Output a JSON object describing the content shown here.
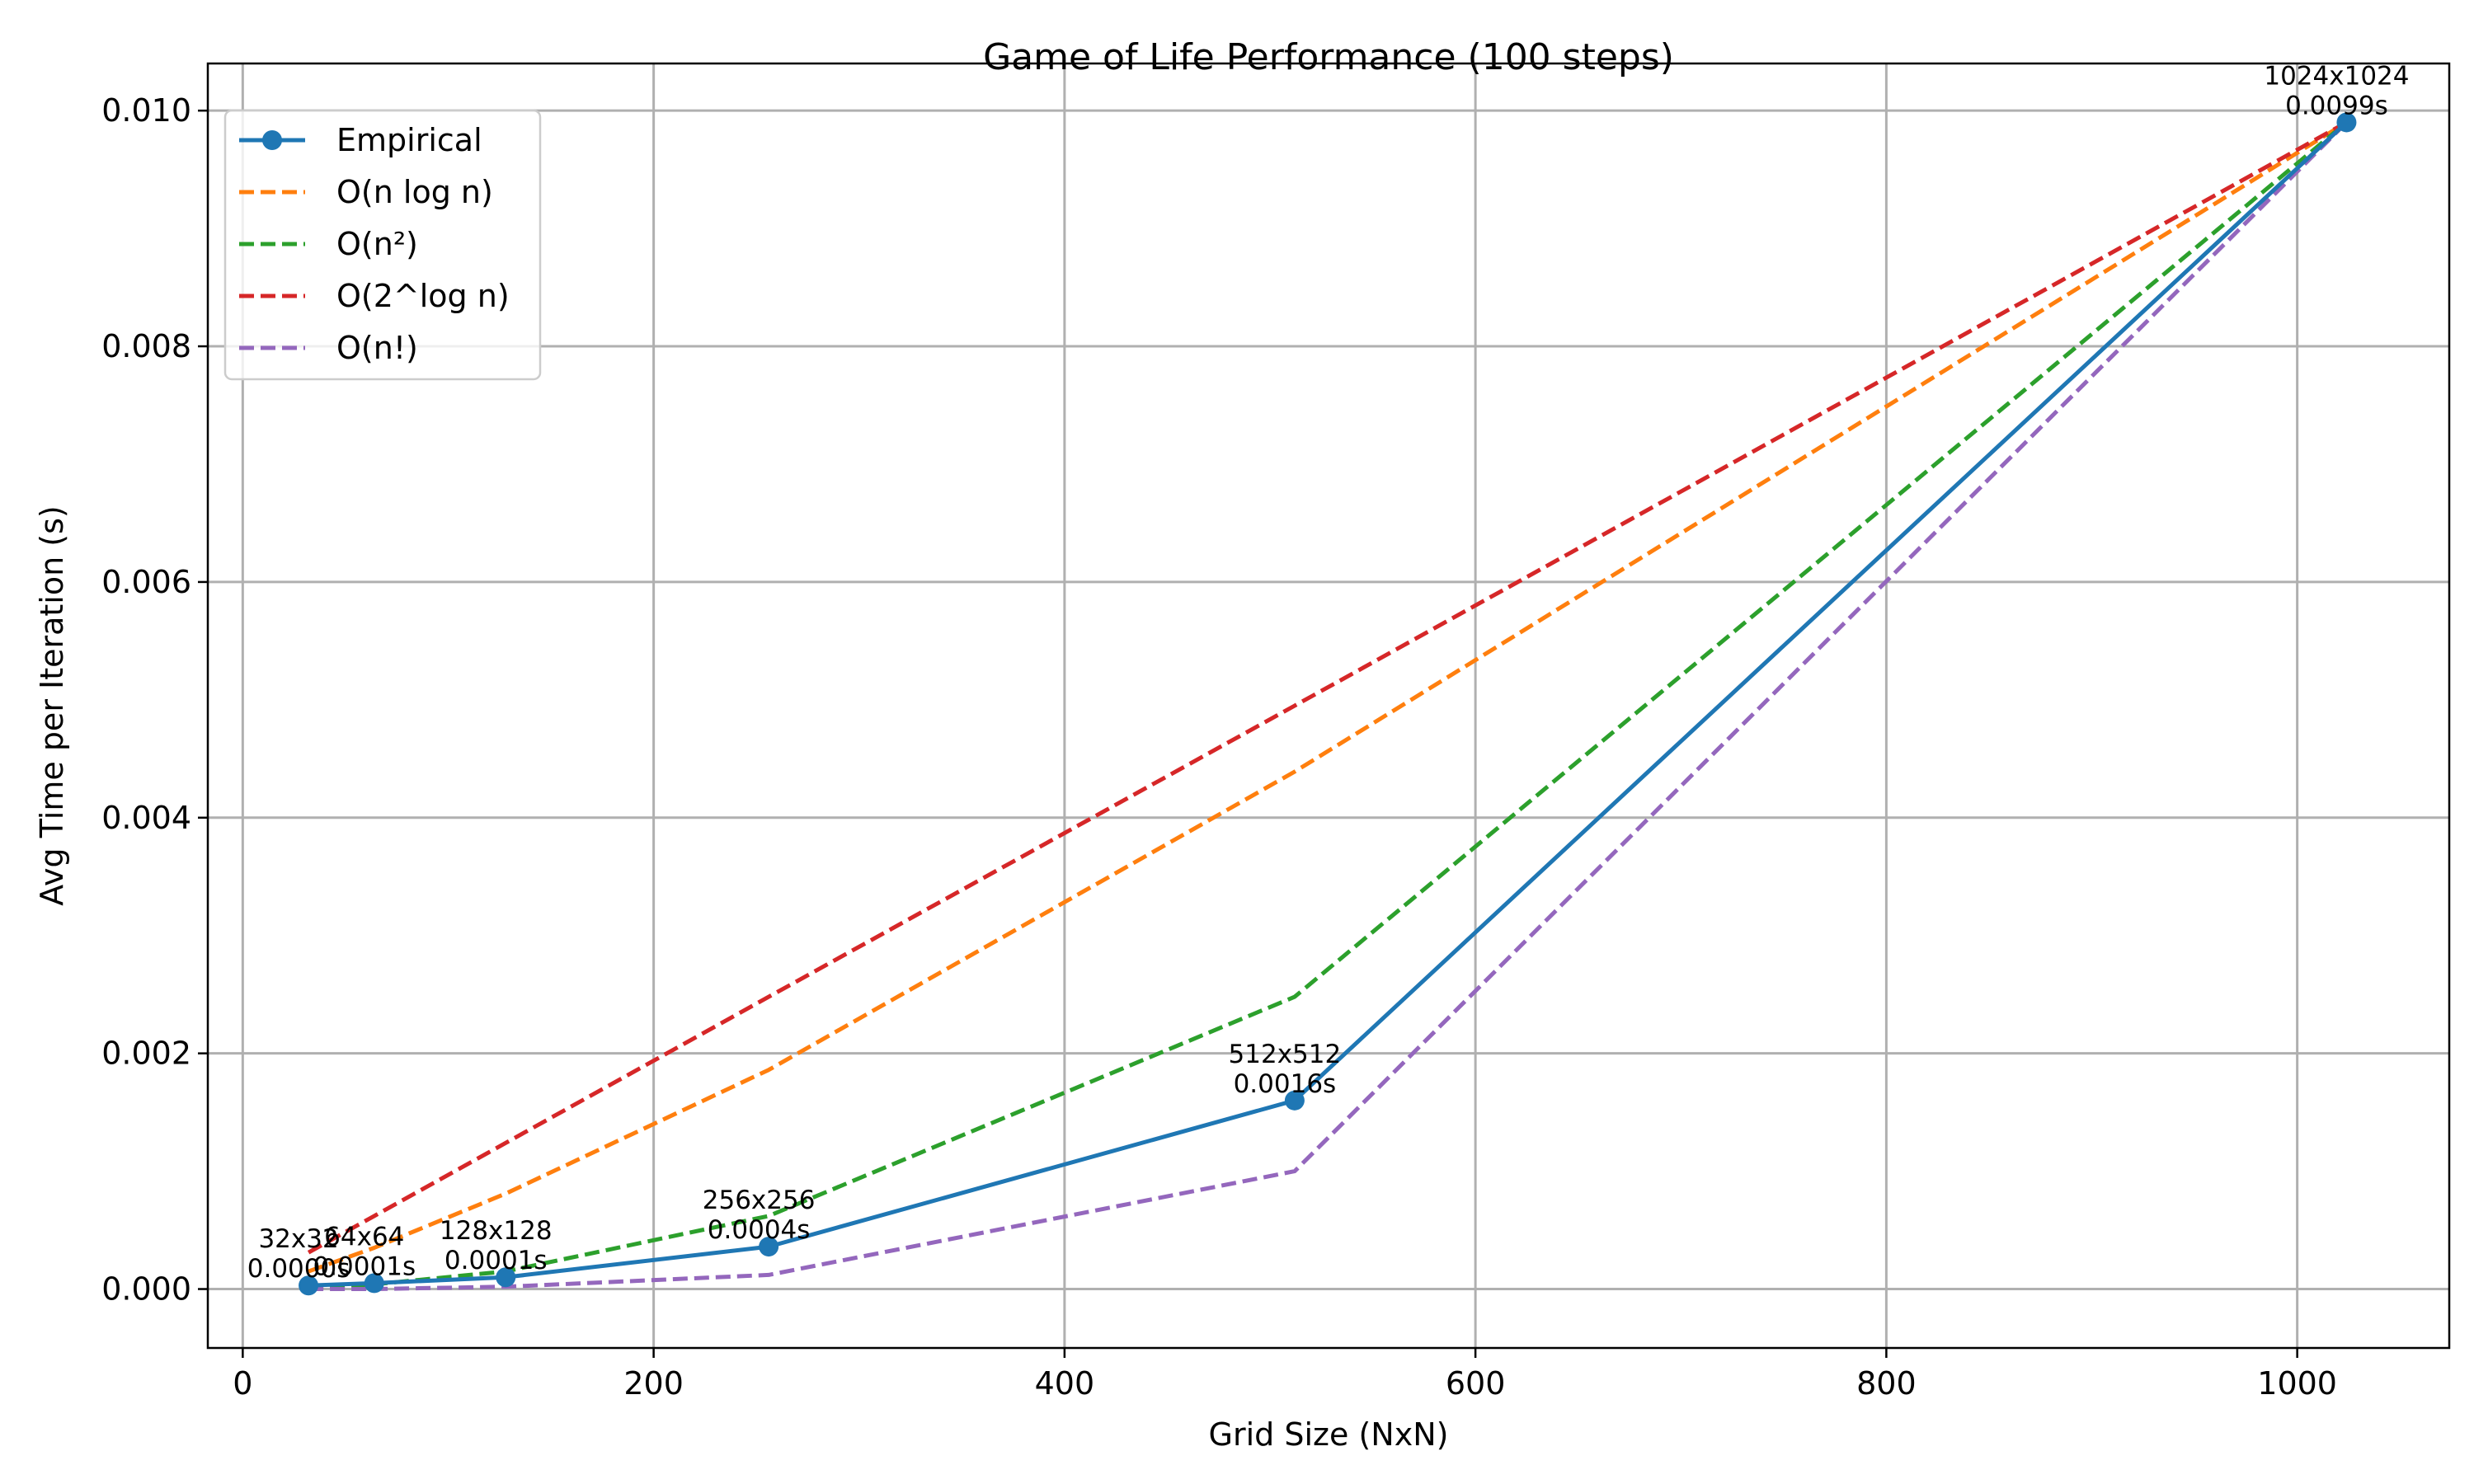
{
  "chart_data": {
    "type": "line",
    "title": "Game of Life Performance (100 steps)",
    "xlabel": "Grid Size (NxN)",
    "ylabel": "Avg Time per Iteration (s)",
    "xlim": [
      -17,
      1074
    ],
    "ylim": [
      -0.0005,
      0.0104
    ],
    "xticks": [
      0,
      200,
      400,
      600,
      800,
      1000
    ],
    "yticks": [
      0.0,
      0.002,
      0.004,
      0.006,
      0.008,
      0.01
    ],
    "xtick_labels": [
      "0",
      "200",
      "400",
      "600",
      "800",
      "1000"
    ],
    "ytick_labels": [
      "0.000",
      "0.002",
      "0.004",
      "0.006",
      "0.008",
      "0.010"
    ],
    "grid": true,
    "legend_position": "top-left",
    "x": [
      32,
      64,
      128,
      256,
      512,
      1024
    ],
    "series": [
      {
        "name": "Empirical",
        "values": [
          3e-05,
          5e-05,
          0.0001,
          0.00036,
          0.0016,
          0.0099
        ],
        "color": "#1f77b4",
        "style": "solid",
        "marker": "circle"
      },
      {
        "name": "O(n log n)",
        "values": [
          0.00015,
          0.00035,
          0.00081,
          0.00186,
          0.00439,
          0.0099
        ],
        "color": "#ff7f0e",
        "style": "dashed"
      },
      {
        "name": "O(n²)",
        "values": [
          1e-05,
          4e-05,
          0.00015,
          0.00062,
          0.00248,
          0.0099
        ],
        "color": "#2ca02c",
        "style": "dashed"
      },
      {
        "name": "O(2^log n)",
        "values": [
          0.00031,
          0.00062,
          0.00124,
          0.00248,
          0.00495,
          0.0099
        ],
        "color": "#d62728",
        "style": "dashed"
      },
      {
        "name": "O(n!)",
        "values": [
          0.0,
          0.0,
          2e-05,
          0.00012,
          0.001,
          0.0099
        ],
        "color": "#9467bd",
        "style": "dashed"
      }
    ],
    "annotations": [
      {
        "line1": "32x32",
        "line2": "0.0000s",
        "x": 32,
        "y": 3e-05
      },
      {
        "line1": "64x64",
        "line2": "0.0001s",
        "x": 64,
        "y": 5e-05
      },
      {
        "line1": "128x128",
        "line2": "0.0001s",
        "x": 128,
        "y": 0.0001
      },
      {
        "line1": "256x256",
        "line2": "0.0004s",
        "x": 256,
        "y": 0.00036
      },
      {
        "line1": "512x512",
        "line2": "0.0016s",
        "x": 512,
        "y": 0.0016
      },
      {
        "line1": "1024x1024",
        "line2": "0.0099s",
        "x": 1024,
        "y": 0.0099
      }
    ]
  }
}
